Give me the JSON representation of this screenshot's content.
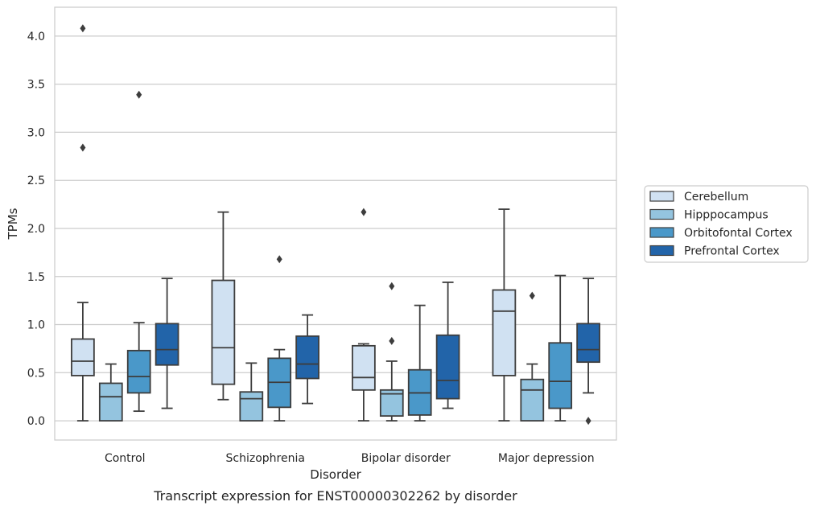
{
  "chart_data": {
    "type": "box",
    "title": "",
    "caption": "Transcript expression for ENST00000302262 by disorder",
    "xlabel": "Disorder",
    "ylabel": "TPMs",
    "ylim": [
      -0.2,
      4.3
    ],
    "yticks": [
      "0.0",
      "0.5",
      "1.0",
      "1.5",
      "2.0",
      "2.5",
      "3.0",
      "3.5",
      "4.0"
    ],
    "grid": "horizontal",
    "legend_position": "right",
    "categories": [
      "Control",
      "Schizophrenia",
      "Bipolar disorder",
      "Major depression"
    ],
    "series": [
      {
        "name": "Cerebellum",
        "color": "#d0e1f2",
        "boxes": [
          {
            "whisker_low": 0.0,
            "q1": 0.47,
            "median": 0.62,
            "q3": 0.85,
            "whisker_high": 1.23,
            "outliers": [
              2.84,
              4.08
            ]
          },
          {
            "whisker_low": 0.22,
            "q1": 0.38,
            "median": 0.76,
            "q3": 1.46,
            "whisker_high": 2.17,
            "outliers": []
          },
          {
            "whisker_low": 0.0,
            "q1": 0.32,
            "median": 0.45,
            "q3": 0.78,
            "whisker_high": 0.8,
            "outliers": [
              2.17
            ]
          },
          {
            "whisker_low": 0.0,
            "q1": 0.47,
            "median": 1.14,
            "q3": 1.36,
            "whisker_high": 2.2,
            "outliers": []
          }
        ]
      },
      {
        "name": "Hipppocampus",
        "color": "#94c4df",
        "boxes": [
          {
            "whisker_low": 0.0,
            "q1": 0.0,
            "median": 0.25,
            "q3": 0.39,
            "whisker_high": 0.59,
            "outliers": []
          },
          {
            "whisker_low": 0.0,
            "q1": 0.0,
            "median": 0.23,
            "q3": 0.3,
            "whisker_high": 0.6,
            "outliers": []
          },
          {
            "whisker_low": 0.0,
            "q1": 0.05,
            "median": 0.28,
            "q3": 0.32,
            "whisker_high": 0.62,
            "outliers": [
              0.83,
              1.4
            ]
          },
          {
            "whisker_low": 0.0,
            "q1": 0.0,
            "median": 0.32,
            "q3": 0.43,
            "whisker_high": 0.59,
            "outliers": [
              1.3
            ]
          }
        ]
      },
      {
        "name": "Orbitofontal Cortex",
        "color": "#4a98c9",
        "boxes": [
          {
            "whisker_low": 0.1,
            "q1": 0.29,
            "median": 0.46,
            "q3": 0.73,
            "whisker_high": 1.02,
            "outliers": [
              3.39
            ]
          },
          {
            "whisker_low": 0.0,
            "q1": 0.14,
            "median": 0.4,
            "q3": 0.65,
            "whisker_high": 0.74,
            "outliers": [
              1.68
            ]
          },
          {
            "whisker_low": 0.0,
            "q1": 0.06,
            "median": 0.29,
            "q3": 0.53,
            "whisker_high": 1.2,
            "outliers": []
          },
          {
            "whisker_low": 0.0,
            "q1": 0.13,
            "median": 0.41,
            "q3": 0.81,
            "whisker_high": 1.51,
            "outliers": []
          }
        ]
      },
      {
        "name": "Prefrontal Cortex",
        "color": "#2264a9",
        "boxes": [
          {
            "whisker_low": 0.13,
            "q1": 0.58,
            "median": 0.74,
            "q3": 1.01,
            "whisker_high": 1.48,
            "outliers": []
          },
          {
            "whisker_low": 0.18,
            "q1": 0.44,
            "median": 0.59,
            "q3": 0.88,
            "whisker_high": 1.1,
            "outliers": []
          },
          {
            "whisker_low": 0.13,
            "q1": 0.23,
            "median": 0.42,
            "q3": 0.89,
            "whisker_high": 1.44,
            "outliers": []
          },
          {
            "whisker_low": 0.29,
            "q1": 0.61,
            "median": 0.74,
            "q3": 1.01,
            "whisker_high": 1.48,
            "outliers": [
              0.0
            ]
          }
        ]
      }
    ]
  }
}
